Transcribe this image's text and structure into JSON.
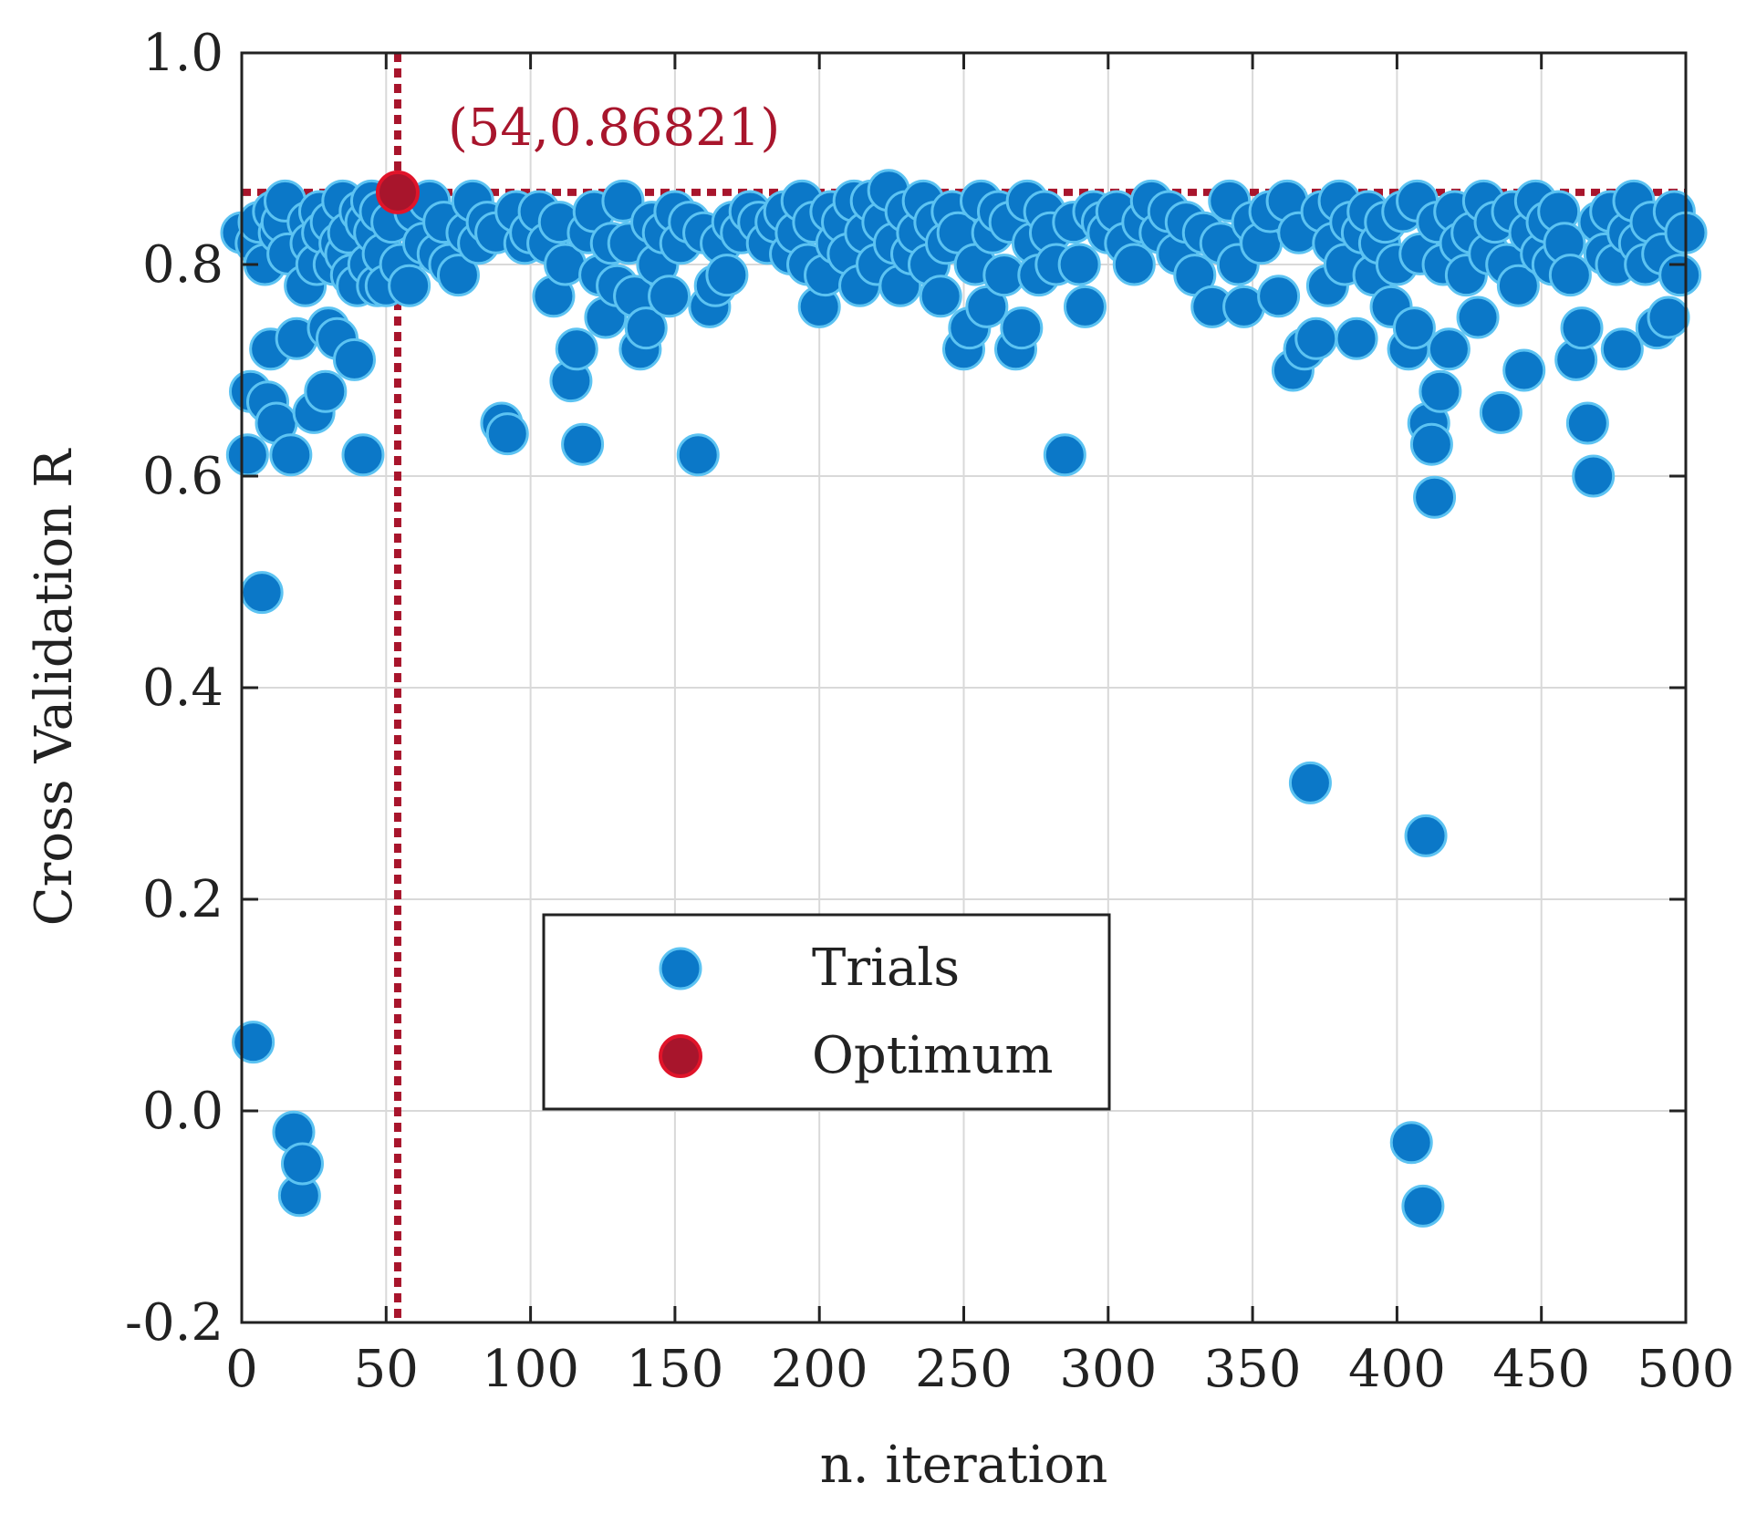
{
  "chart_data": {
    "type": "scatter",
    "xlabel": "n. iteration",
    "ylabel": "Cross Validation R",
    "xlim": [
      0,
      500
    ],
    "ylim": [
      -0.2,
      1.0
    ],
    "x_ticks": [
      "0",
      "50",
      "100",
      "150",
      "200",
      "250",
      "300",
      "350",
      "400",
      "450",
      "500"
    ],
    "y_ticks": [
      "-0.2",
      "0.0",
      "0.2",
      "0.4",
      "0.6",
      "0.8",
      "1.0"
    ],
    "grid": true,
    "legend": {
      "placement": "center-bottom",
      "entries": [
        "Trials",
        "Optimum"
      ]
    },
    "colors": {
      "trials_fill": "#0b78c8",
      "trials_edge": "#5cc3f2",
      "optimum_fill": "#a8152c",
      "optimum_edge": "#e0142a",
      "reference_line": "#a8152c",
      "grid": "#d9d9d9"
    },
    "optimum": {
      "x": 54,
      "y": 0.86821,
      "label": "(54,0.86821)"
    },
    "series": [
      {
        "name": "Trials",
        "points": [
          [
            0,
            0.83
          ],
          [
            2,
            0.62
          ],
          [
            3,
            0.68
          ],
          [
            4,
            0.065
          ],
          [
            5,
            0.82
          ],
          [
            6,
            0.84
          ],
          [
            7,
            0.49
          ],
          [
            8,
            0.8
          ],
          [
            9,
            0.67
          ],
          [
            10,
            0.72
          ],
          [
            11,
            0.85
          ],
          [
            12,
            0.65
          ],
          [
            13,
            0.83
          ],
          [
            14,
            0.84
          ],
          [
            15,
            0.86
          ],
          [
            16,
            0.81
          ],
          [
            17,
            0.62
          ],
          [
            18,
            -0.02
          ],
          [
            19,
            0.73
          ],
          [
            20,
            -0.08
          ],
          [
            21,
            -0.05
          ],
          [
            22,
            0.78
          ],
          [
            23,
            0.84
          ],
          [
            24,
            0.82
          ],
          [
            25,
            0.66
          ],
          [
            26,
            0.8
          ],
          [
            27,
            0.85
          ],
          [
            28,
            0.83
          ],
          [
            29,
            0.68
          ],
          [
            30,
            0.74
          ],
          [
            31,
            0.84
          ],
          [
            32,
            0.8
          ],
          [
            33,
            0.73
          ],
          [
            34,
            0.82
          ],
          [
            35,
            0.86
          ],
          [
            36,
            0.81
          ],
          [
            37,
            0.83
          ],
          [
            38,
            0.79
          ],
          [
            39,
            0.71
          ],
          [
            40,
            0.78
          ],
          [
            41,
            0.85
          ],
          [
            42,
            0.62
          ],
          [
            43,
            0.84
          ],
          [
            44,
            0.8
          ],
          [
            45,
            0.86
          ],
          [
            46,
            0.83
          ],
          [
            47,
            0.78
          ],
          [
            48,
            0.85
          ],
          [
            49,
            0.81
          ],
          [
            50,
            0.78
          ],
          [
            52,
            0.84
          ],
          [
            55,
            0.8
          ],
          [
            58,
            0.78
          ],
          [
            60,
            0.85
          ],
          [
            63,
            0.82
          ],
          [
            65,
            0.86
          ],
          [
            68,
            0.81
          ],
          [
            70,
            0.84
          ],
          [
            72,
            0.8
          ],
          [
            75,
            0.79
          ],
          [
            78,
            0.83
          ],
          [
            80,
            0.86
          ],
          [
            82,
            0.82
          ],
          [
            85,
            0.84
          ],
          [
            88,
            0.83
          ],
          [
            90,
            0.65
          ],
          [
            92,
            0.64
          ],
          [
            95,
            0.85
          ],
          [
            98,
            0.82
          ],
          [
            100,
            0.83
          ],
          [
            103,
            0.85
          ],
          [
            106,
            0.82
          ],
          [
            108,
            0.77
          ],
          [
            110,
            0.84
          ],
          [
            112,
            0.8
          ],
          [
            114,
            0.69
          ],
          [
            116,
            0.72
          ],
          [
            118,
            0.63
          ],
          [
            120,
            0.83
          ],
          [
            122,
            0.85
          ],
          [
            124,
            0.79
          ],
          [
            126,
            0.75
          ],
          [
            128,
            0.82
          ],
          [
            130,
            0.78
          ],
          [
            132,
            0.86
          ],
          [
            134,
            0.82
          ],
          [
            136,
            0.77
          ],
          [
            138,
            0.72
          ],
          [
            140,
            0.74
          ],
          [
            142,
            0.84
          ],
          [
            144,
            0.8
          ],
          [
            146,
            0.83
          ],
          [
            148,
            0.77
          ],
          [
            150,
            0.85
          ],
          [
            152,
            0.82
          ],
          [
            155,
            0.84
          ],
          [
            158,
            0.62
          ],
          [
            160,
            0.83
          ],
          [
            162,
            0.76
          ],
          [
            164,
            0.78
          ],
          [
            166,
            0.82
          ],
          [
            168,
            0.79
          ],
          [
            170,
            0.84
          ],
          [
            173,
            0.83
          ],
          [
            176,
            0.85
          ],
          [
            179,
            0.84
          ],
          [
            182,
            0.82
          ],
          [
            185,
            0.84
          ],
          [
            188,
            0.85
          ],
          [
            190,
            0.81
          ],
          [
            192,
            0.83
          ],
          [
            194,
            0.86
          ],
          [
            196,
            0.8
          ],
          [
            198,
            0.84
          ],
          [
            200,
            0.76
          ],
          [
            202,
            0.79
          ],
          [
            204,
            0.85
          ],
          [
            206,
            0.82
          ],
          [
            208,
            0.84
          ],
          [
            210,
            0.81
          ],
          [
            212,
            0.86
          ],
          [
            214,
            0.78
          ],
          [
            216,
            0.83
          ],
          [
            218,
            0.86
          ],
          [
            220,
            0.8
          ],
          [
            222,
            0.84
          ],
          [
            224,
            0.87
          ],
          [
            226,
            0.82
          ],
          [
            228,
            0.78
          ],
          [
            230,
            0.85
          ],
          [
            232,
            0.81
          ],
          [
            234,
            0.83
          ],
          [
            236,
            0.86
          ],
          [
            238,
            0.8
          ],
          [
            240,
            0.84
          ],
          [
            242,
            0.77
          ],
          [
            244,
            0.82
          ],
          [
            246,
            0.85
          ],
          [
            248,
            0.83
          ],
          [
            250,
            0.72
          ],
          [
            252,
            0.74
          ],
          [
            254,
            0.8
          ],
          [
            256,
            0.86
          ],
          [
            258,
            0.76
          ],
          [
            260,
            0.83
          ],
          [
            262,
            0.85
          ],
          [
            264,
            0.79
          ],
          [
            266,
            0.84
          ],
          [
            268,
            0.72
          ],
          [
            270,
            0.74
          ],
          [
            272,
            0.86
          ],
          [
            274,
            0.82
          ],
          [
            276,
            0.79
          ],
          [
            278,
            0.85
          ],
          [
            280,
            0.83
          ],
          [
            282,
            0.8
          ],
          [
            285,
            0.62
          ],
          [
            288,
            0.84
          ],
          [
            290,
            0.8
          ],
          [
            292,
            0.76
          ],
          [
            295,
            0.85
          ],
          [
            298,
            0.84
          ],
          [
            300,
            0.83
          ],
          [
            303,
            0.85
          ],
          [
            306,
            0.82
          ],
          [
            309,
            0.8
          ],
          [
            312,
            0.84
          ],
          [
            315,
            0.86
          ],
          [
            318,
            0.83
          ],
          [
            321,
            0.85
          ],
          [
            324,
            0.81
          ],
          [
            327,
            0.84
          ],
          [
            330,
            0.79
          ],
          [
            333,
            0.83
          ],
          [
            336,
            0.76
          ],
          [
            339,
            0.82
          ],
          [
            342,
            0.86
          ],
          [
            345,
            0.8
          ],
          [
            347,
            0.76
          ],
          [
            350,
            0.84
          ],
          [
            353,
            0.82
          ],
          [
            356,
            0.85
          ],
          [
            359,
            0.77
          ],
          [
            362,
            0.86
          ],
          [
            364,
            0.7
          ],
          [
            366,
            0.83
          ],
          [
            368,
            0.72
          ],
          [
            370,
            0.31
          ],
          [
            372,
            0.73
          ],
          [
            374,
            0.85
          ],
          [
            376,
            0.78
          ],
          [
            378,
            0.82
          ],
          [
            380,
            0.86
          ],
          [
            382,
            0.8
          ],
          [
            384,
            0.84
          ],
          [
            386,
            0.73
          ],
          [
            388,
            0.83
          ],
          [
            390,
            0.85
          ],
          [
            392,
            0.79
          ],
          [
            394,
            0.82
          ],
          [
            396,
            0.84
          ],
          [
            398,
            0.76
          ],
          [
            400,
            0.8
          ],
          [
            402,
            0.85
          ],
          [
            404,
            0.72
          ],
          [
            405,
            -0.03
          ],
          [
            406,
            0.74
          ],
          [
            407,
            0.86
          ],
          [
            408,
            0.81
          ],
          [
            409,
            -0.09
          ],
          [
            410,
            0.26
          ],
          [
            411,
            0.65
          ],
          [
            412,
            0.63
          ],
          [
            413,
            0.58
          ],
          [
            414,
            0.84
          ],
          [
            415,
            0.68
          ],
          [
            416,
            0.8
          ],
          [
            418,
            0.72
          ],
          [
            420,
            0.85
          ],
          [
            422,
            0.82
          ],
          [
            424,
            0.79
          ],
          [
            426,
            0.83
          ],
          [
            428,
            0.75
          ],
          [
            430,
            0.86
          ],
          [
            432,
            0.81
          ],
          [
            434,
            0.84
          ],
          [
            436,
            0.66
          ],
          [
            438,
            0.8
          ],
          [
            440,
            0.85
          ],
          [
            442,
            0.78
          ],
          [
            444,
            0.7
          ],
          [
            446,
            0.83
          ],
          [
            448,
            0.86
          ],
          [
            450,
            0.81
          ],
          [
            452,
            0.84
          ],
          [
            454,
            0.8
          ],
          [
            456,
            0.85
          ],
          [
            458,
            0.82
          ],
          [
            460,
            0.79
          ],
          [
            462,
            0.71
          ],
          [
            464,
            0.74
          ],
          [
            466,
            0.65
          ],
          [
            468,
            0.6
          ],
          [
            470,
            0.84
          ],
          [
            472,
            0.81
          ],
          [
            474,
            0.85
          ],
          [
            476,
            0.8
          ],
          [
            478,
            0.72
          ],
          [
            480,
            0.83
          ],
          [
            482,
            0.86
          ],
          [
            484,
            0.82
          ],
          [
            486,
            0.8
          ],
          [
            488,
            0.84
          ],
          [
            490,
            0.74
          ],
          [
            492,
            0.81
          ],
          [
            494,
            0.75
          ],
          [
            496,
            0.85
          ],
          [
            498,
            0.79
          ],
          [
            500,
            0.83
          ]
        ]
      },
      {
        "name": "Optimum",
        "points": [
          [
            54,
            0.86821
          ]
        ]
      }
    ]
  }
}
